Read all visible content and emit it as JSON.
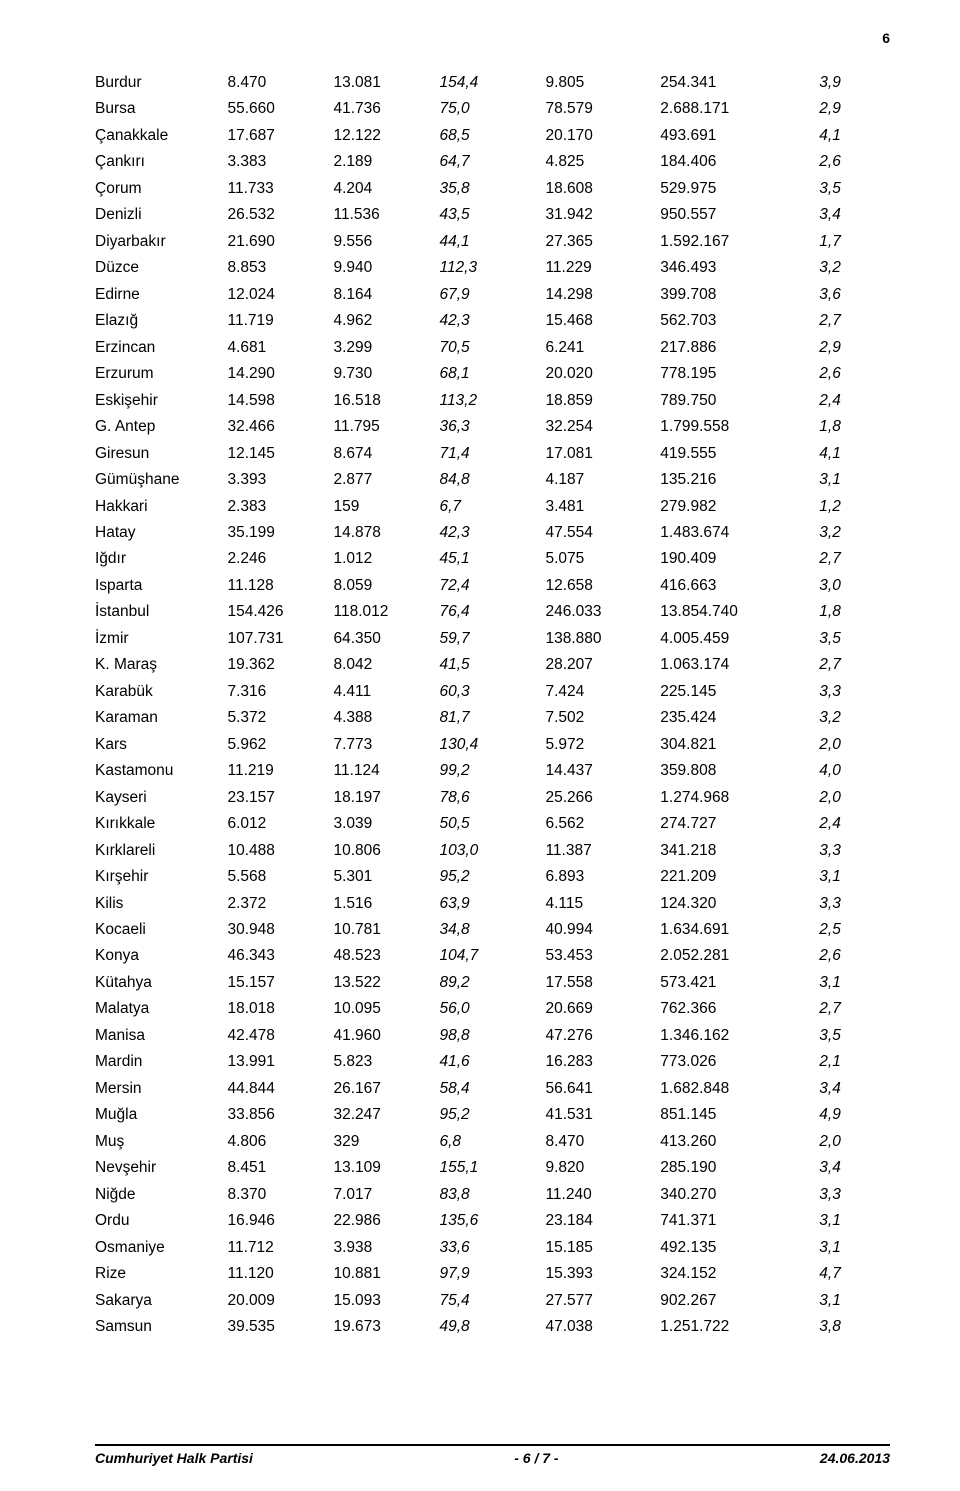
{
  "page_number_top": "6",
  "footer": {
    "left": "Cumhuriyet Halk Partisi",
    "center": "- 6 / 7 -",
    "right": "24.06.2013"
  },
  "table": {
    "col_classes": [
      "c0",
      "c1",
      "c2",
      "c3",
      "c4",
      "c5",
      "c6"
    ],
    "rows": [
      [
        "Burdur",
        "8.470",
        "13.081",
        "154,4",
        "9.805",
        "254.341",
        "3,9"
      ],
      [
        "Bursa",
        "55.660",
        "41.736",
        "75,0",
        "78.579",
        "2.688.171",
        "2,9"
      ],
      [
        "Çanakkale",
        "17.687",
        "12.122",
        "68,5",
        "20.170",
        "493.691",
        "4,1"
      ],
      [
        "Çankırı",
        "3.383",
        "2.189",
        "64,7",
        "4.825",
        "184.406",
        "2,6"
      ],
      [
        "Çorum",
        "11.733",
        "4.204",
        "35,8",
        "18.608",
        "529.975",
        "3,5"
      ],
      [
        "Denizli",
        "26.532",
        "11.536",
        "43,5",
        "31.942",
        "950.557",
        "3,4"
      ],
      [
        "Diyarbakır",
        "21.690",
        "9.556",
        "44,1",
        "27.365",
        "1.592.167",
        "1,7"
      ],
      [
        "Düzce",
        "8.853",
        "9.940",
        "112,3",
        "11.229",
        "346.493",
        "3,2"
      ],
      [
        "Edirne",
        "12.024",
        "8.164",
        "67,9",
        "14.298",
        "399.708",
        "3,6"
      ],
      [
        "Elazığ",
        "11.719",
        "4.962",
        "42,3",
        "15.468",
        "562.703",
        "2,7"
      ],
      [
        "Erzincan",
        "4.681",
        "3.299",
        "70,5",
        "6.241",
        "217.886",
        "2,9"
      ],
      [
        "Erzurum",
        "14.290",
        "9.730",
        "68,1",
        "20.020",
        "778.195",
        "2,6"
      ],
      [
        "Eskişehir",
        "14.598",
        "16.518",
        "113,2",
        "18.859",
        "789.750",
        "2,4"
      ],
      [
        "G. Antep",
        "32.466",
        "11.795",
        "36,3",
        "32.254",
        "1.799.558",
        "1,8"
      ],
      [
        "Giresun",
        "12.145",
        "8.674",
        "71,4",
        "17.081",
        "419.555",
        "4,1"
      ],
      [
        "Gümüşhane",
        "3.393",
        "2.877",
        "84,8",
        "4.187",
        "135.216",
        "3,1"
      ],
      [
        "Hakkari",
        "2.383",
        "159",
        "6,7",
        "3.481",
        "279.982",
        "1,2"
      ],
      [
        "Hatay",
        "35.199",
        "14.878",
        "42,3",
        "47.554",
        "1.483.674",
        "3,2"
      ],
      [
        "Iğdır",
        "2.246",
        "1.012",
        "45,1",
        "5.075",
        "190.409",
        "2,7"
      ],
      [
        "Isparta",
        "11.128",
        "8.059",
        "72,4",
        "12.658",
        "416.663",
        "3,0"
      ],
      [
        "İstanbul",
        "154.426",
        "118.012",
        "76,4",
        "246.033",
        "13.854.740",
        "1,8"
      ],
      [
        "İzmir",
        "107.731",
        "64.350",
        "59,7",
        "138.880",
        "4.005.459",
        "3,5"
      ],
      [
        "K. Maraş",
        "19.362",
        "8.042",
        "41,5",
        "28.207",
        "1.063.174",
        "2,7"
      ],
      [
        "Karabük",
        "7.316",
        "4.411",
        "60,3",
        "7.424",
        "225.145",
        "3,3"
      ],
      [
        "Karaman",
        "5.372",
        "4.388",
        "81,7",
        "7.502",
        "235.424",
        "3,2"
      ],
      [
        "Kars",
        "5.962",
        "7.773",
        "130,4",
        "5.972",
        "304.821",
        "2,0"
      ],
      [
        "Kastamonu",
        "11.219",
        "11.124",
        "99,2",
        "14.437",
        "359.808",
        "4,0"
      ],
      [
        "Kayseri",
        "23.157",
        "18.197",
        "78,6",
        "25.266",
        "1.274.968",
        "2,0"
      ],
      [
        "Kırıkkale",
        "6.012",
        "3.039",
        "50,5",
        "6.562",
        "274.727",
        "2,4"
      ],
      [
        "Kırklareli",
        "10.488",
        "10.806",
        "103,0",
        "11.387",
        "341.218",
        "3,3"
      ],
      [
        "Kırşehir",
        "5.568",
        "5.301",
        "95,2",
        "6.893",
        "221.209",
        "3,1"
      ],
      [
        "Kilis",
        "2.372",
        "1.516",
        "63,9",
        "4.115",
        "124.320",
        "3,3"
      ],
      [
        "Kocaeli",
        "30.948",
        "10.781",
        "34,8",
        "40.994",
        "1.634.691",
        "2,5"
      ],
      [
        "Konya",
        "46.343",
        "48.523",
        "104,7",
        "53.453",
        "2.052.281",
        "2,6"
      ],
      [
        "Kütahya",
        "15.157",
        "13.522",
        "89,2",
        "17.558",
        "573.421",
        "3,1"
      ],
      [
        "Malatya",
        "18.018",
        "10.095",
        "56,0",
        "20.669",
        "762.366",
        "2,7"
      ],
      [
        "Manisa",
        "42.478",
        "41.960",
        "98,8",
        "47.276",
        "1.346.162",
        "3,5"
      ],
      [
        "Mardin",
        "13.991",
        "5.823",
        "41,6",
        "16.283",
        "773.026",
        "2,1"
      ],
      [
        "Mersin",
        "44.844",
        "26.167",
        "58,4",
        "56.641",
        "1.682.848",
        "3,4"
      ],
      [
        "Muğla",
        "33.856",
        "32.247",
        "95,2",
        "41.531",
        "851.145",
        "4,9"
      ],
      [
        "Muş",
        "4.806",
        "329",
        "6,8",
        "8.470",
        "413.260",
        "2,0"
      ],
      [
        "Nevşehir",
        "8.451",
        "13.109",
        "155,1",
        "9.820",
        "285.190",
        "3,4"
      ],
      [
        "Niğde",
        "8.370",
        "7.017",
        "83,8",
        "11.240",
        "340.270",
        "3,3"
      ],
      [
        "Ordu",
        "16.946",
        "22.986",
        "135,6",
        "23.184",
        "741.371",
        "3,1"
      ],
      [
        "Osmaniye",
        "11.712",
        "3.938",
        "33,6",
        "15.185",
        "492.135",
        "3,1"
      ],
      [
        "Rize",
        "11.120",
        "10.881",
        "97,9",
        "15.393",
        "324.152",
        "4,7"
      ],
      [
        "Sakarya",
        "20.009",
        "15.093",
        "75,4",
        "27.577",
        "902.267",
        "3,1"
      ],
      [
        "Samsun",
        "39.535",
        "19.673",
        "49,8",
        "47.038",
        "1.251.722",
        "3,8"
      ]
    ]
  }
}
